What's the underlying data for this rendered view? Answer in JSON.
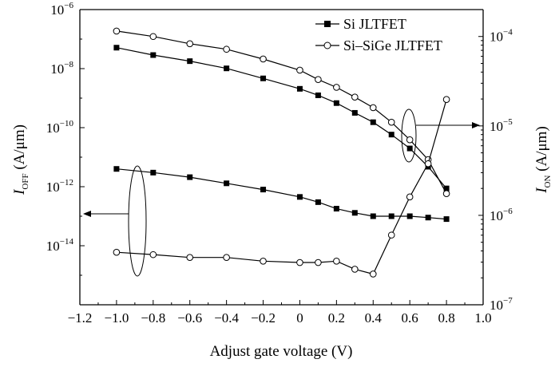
{
  "chart_data": {
    "type": "line",
    "x": [
      -1.0,
      -0.8,
      -0.6,
      -0.4,
      -0.2,
      0.0,
      0.1,
      0.2,
      0.3,
      0.4,
      0.5,
      0.6,
      0.7,
      0.8
    ],
    "xlabel": "Adjust gate voltage (V)",
    "xlim": [
      -1.2,
      1.0
    ],
    "x_ticks": [
      "−1.2",
      "−1.0",
      "−0.8",
      "−0.6",
      "−0.4",
      "−0.2",
      "0",
      "0.2",
      "0.4",
      "0.6",
      "0.8",
      "1.0"
    ],
    "y_left": {
      "label_main": "I",
      "label_sub": "OFF",
      "label_unit": " (A/μm)",
      "scale": "log",
      "range": [
        1e-16,
        1e-06
      ],
      "ticks": [
        {
          "base": "10",
          "exp": "−6"
        },
        {
          "base": "10",
          "exp": "−8"
        },
        {
          "base": "10",
          "exp": "−10"
        },
        {
          "base": "10",
          "exp": "−12"
        },
        {
          "base": "10",
          "exp": "−14"
        }
      ]
    },
    "y_right": {
      "label_main": "I",
      "label_sub": "ON",
      "label_unit": " (A/μm)",
      "scale": "log",
      "range": [
        1e-07,
        0.0002
      ],
      "ticks": [
        {
          "base": "10",
          "exp": "−4"
        },
        {
          "base": "10",
          "exp": "−5"
        },
        {
          "base": "10",
          "exp": "−6"
        },
        {
          "base": "10",
          "exp": "−7"
        }
      ]
    },
    "series": [
      {
        "name": "Si JLTFET",
        "quantity": "I_ON",
        "axis": "right",
        "marker": "filled-square",
        "values": [
          7.5e-05,
          6.2e-05,
          5.3e-05,
          4.4e-05,
          3.4e-05,
          2.6e-05,
          2.2e-05,
          1.8e-05,
          1.4e-05,
          1.1e-05,
          8e-06,
          5.6e-06,
          3.5e-06,
          2e-06
        ]
      },
      {
        "name": "Si-SiGe JLTFET",
        "quantity": "I_ON",
        "axis": "right",
        "marker": "open-circle",
        "values": [
          0.000115,
          0.0001,
          8.3e-05,
          7.2e-05,
          5.6e-05,
          4.2e-05,
          3.3e-05,
          2.7e-05,
          2.1e-05,
          1.6e-05,
          1.1e-05,
          7e-06,
          4.2e-06,
          1.75e-06
        ]
      },
      {
        "name": "Si JLTFET",
        "quantity": "I_OFF",
        "axis": "left",
        "marker": "filled-square",
        "values": [
          4e-12,
          3e-12,
          2.1e-12,
          1.3e-12,
          8e-13,
          4.5e-13,
          3e-13,
          1.8e-13,
          1.3e-13,
          1e-13,
          1e-13,
          1e-13,
          9e-14,
          8e-14
        ]
      },
      {
        "name": "Si-SiGe JLTFET",
        "quantity": "I_OFF",
        "axis": "left",
        "marker": "open-circle",
        "values": [
          6e-15,
          5e-15,
          4e-15,
          4e-15,
          3e-15,
          2.7e-15,
          2.7e-15,
          3e-15,
          1.6e-15,
          1.1e-15,
          2.3e-14,
          4.5e-13,
          6e-12,
          9e-10
        ]
      }
    ],
    "legend": {
      "position": "top-right",
      "entries": [
        {
          "label": "Si JLTFET",
          "marker": "filled-square"
        },
        {
          "label": "Si–SiGe JLTFET",
          "marker": "open-circle"
        }
      ]
    },
    "annotations": [
      {
        "type": "ellipse-arrow",
        "encircles": "I_OFF curves at x=-0.9",
        "points_to": "left axis"
      },
      {
        "type": "ellipse-arrow",
        "encircles": "I_ON curves at x=0.6",
        "points_to": "right axis"
      }
    ],
    "grid": false
  }
}
